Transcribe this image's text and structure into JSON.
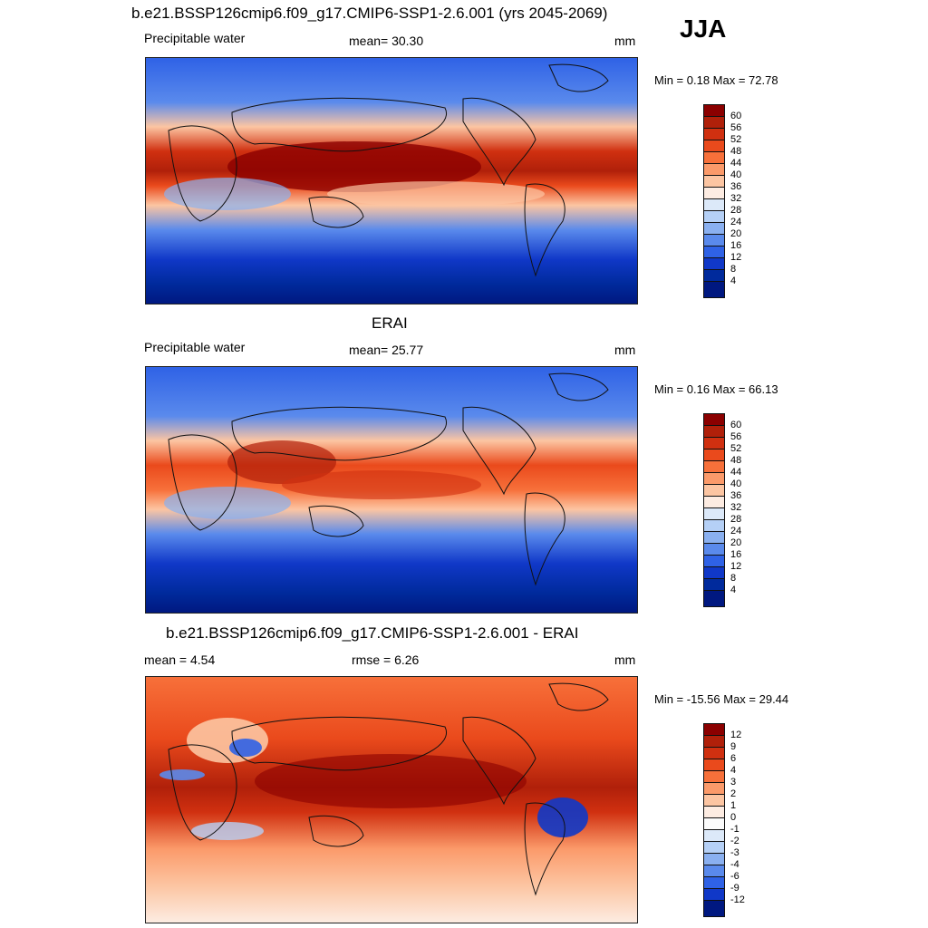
{
  "season": "JJA",
  "panels": [
    {
      "title": "b.e21.BSSP126cmip6.f09_g17.CMIP6-SSP1-2.6.001 (yrs 2045-2069)",
      "left": "Precipitable water",
      "center": "mean=  30.30",
      "right": "mm",
      "minmax": "Min =   0.18 Max =  72.78",
      "colorbar": {
        "labels": [
          "60",
          "56",
          "52",
          "48",
          "44",
          "40",
          "36",
          "32",
          "28",
          "24",
          "20",
          "16",
          "12",
          "8",
          "4"
        ],
        "colors": [
          "#8b0000",
          "#b0200a",
          "#d03010",
          "#ea4a1c",
          "#f7703a",
          "#fb9a6a",
          "#fcc5a2",
          "#fdece2",
          "#dce9f9",
          "#b5d0f6",
          "#8ab0f0",
          "#5a8aec",
          "#2f62e6",
          "#1038c8",
          "#002a9c",
          "#001880"
        ]
      }
    },
    {
      "title": "ERAI",
      "left": "Precipitable water",
      "center": "mean=  25.77",
      "right": "mm",
      "minmax": "Min =   0.16 Max =  66.13",
      "colorbar": {
        "labels": [
          "60",
          "56",
          "52",
          "48",
          "44",
          "40",
          "36",
          "32",
          "28",
          "24",
          "20",
          "16",
          "12",
          "8",
          "4"
        ],
        "colors": [
          "#8b0000",
          "#b0200a",
          "#d03010",
          "#ea4a1c",
          "#f7703a",
          "#fb9a6a",
          "#fcc5a2",
          "#fdece2",
          "#dce9f9",
          "#b5d0f6",
          "#8ab0f0",
          "#5a8aec",
          "#2f62e6",
          "#1038c8",
          "#002a9c",
          "#001880"
        ]
      }
    },
    {
      "title": "b.e21.BSSP126cmip6.f09_g17.CMIP6-SSP1-2.6.001 - ERAI",
      "left": "mean =   4.54",
      "center": "rmse =   6.26",
      "right": "mm",
      "minmax": "Min = -15.56 Max =  29.44",
      "colorbar": {
        "labels": [
          "12",
          "9",
          "6",
          "4",
          "3",
          "2",
          "1",
          "0",
          "-1",
          "-2",
          "-3",
          "-4",
          "-6",
          "-9",
          "-12"
        ],
        "colors": [
          "#8b0000",
          "#b0200a",
          "#d03010",
          "#ea4a1c",
          "#f7703a",
          "#fb9a6a",
          "#fcc5a2",
          "#fdece2",
          "#fbfbfb",
          "#dce9f9",
          "#b5d0f6",
          "#8ab0f0",
          "#5a8aec",
          "#2f62e6",
          "#1038c8",
          "#001880"
        ]
      }
    }
  ]
}
